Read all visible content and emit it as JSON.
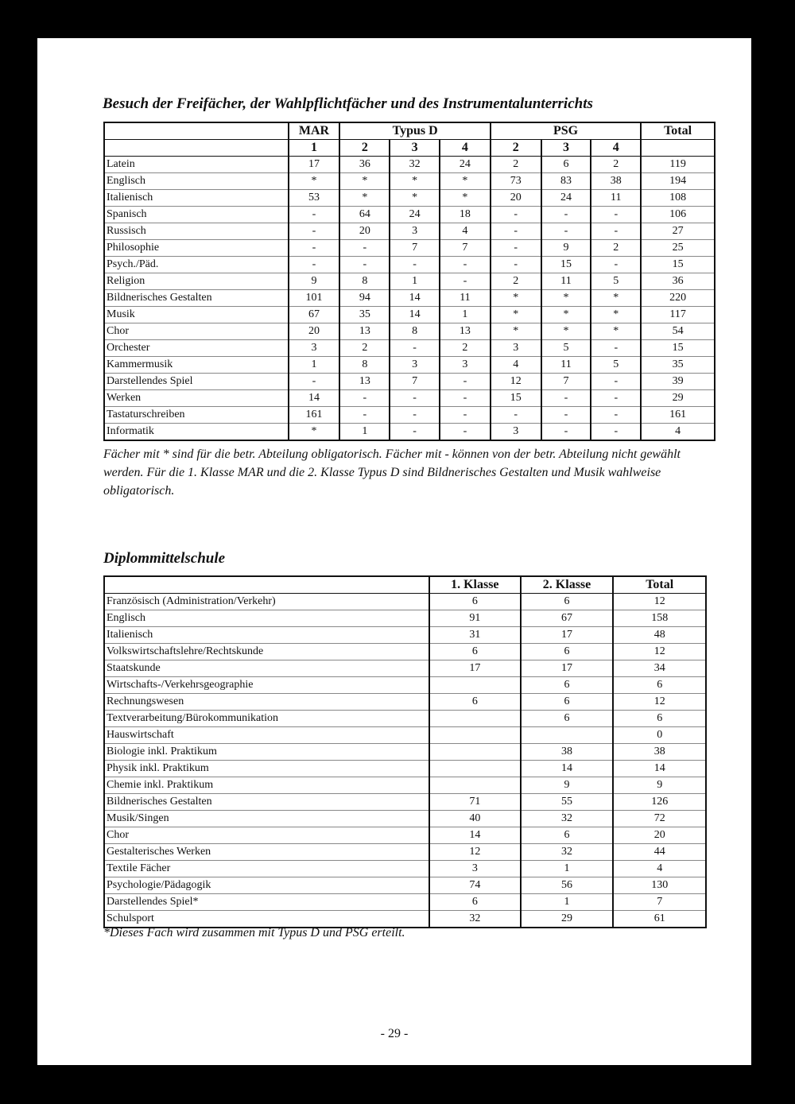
{
  "section1": {
    "title": "Besuch der Freifächer, der Wahlpflichtfächer und des Instrumentalunterrichts",
    "groups": [
      "MAR",
      "Typus D",
      "PSG",
      "Total"
    ],
    "classes": [
      "1",
      "2",
      "3",
      "4",
      "2",
      "3",
      "4"
    ],
    "rows": [
      [
        "Latein",
        "17",
        "36",
        "32",
        "24",
        "2",
        "6",
        "2",
        "119"
      ],
      [
        "Englisch",
        "*",
        "*",
        "*",
        "*",
        "73",
        "83",
        "38",
        "194"
      ],
      [
        "Italienisch",
        "53",
        "*",
        "*",
        "*",
        "20",
        "24",
        "11",
        "108"
      ],
      [
        "Spanisch",
        "-",
        "64",
        "24",
        "18",
        "-",
        "-",
        "-",
        "106"
      ],
      [
        "Russisch",
        "-",
        "20",
        "3",
        "4",
        "-",
        "-",
        "-",
        "27"
      ],
      [
        "Philosophie",
        "-",
        "-",
        "7",
        "7",
        "-",
        "9",
        "2",
        "25"
      ],
      [
        "Psych./Päd.",
        "-",
        "-",
        "-",
        "-",
        "-",
        "15",
        "-",
        "15"
      ],
      [
        "Religion",
        "9",
        "8",
        "1",
        "-",
        "2",
        "11",
        "5",
        "36"
      ],
      [
        "Bildnerisches Gestalten",
        "101",
        "94",
        "14",
        "11",
        "*",
        "*",
        "*",
        "220"
      ],
      [
        "Musik",
        "67",
        "35",
        "14",
        "1",
        "*",
        "*",
        "*",
        "117"
      ],
      [
        "Chor",
        "20",
        "13",
        "8",
        "13",
        "*",
        "*",
        "*",
        "54"
      ],
      [
        "Orchester",
        "3",
        "2",
        "-",
        "2",
        "3",
        "5",
        "-",
        "15"
      ],
      [
        "Kammermusik",
        "1",
        "8",
        "3",
        "3",
        "4",
        "11",
        "5",
        "35"
      ],
      [
        "Darstellendes Spiel",
        "-",
        "13",
        "7",
        "-",
        "12",
        "7",
        "-",
        "39"
      ],
      [
        "Werken",
        "14",
        "-",
        "-",
        "-",
        "15",
        "-",
        "-",
        "29"
      ],
      [
        "Tastaturschreiben",
        "161",
        "-",
        "-",
        "-",
        "-",
        "-",
        "-",
        "161"
      ],
      [
        "Informatik",
        "*",
        "1",
        "-",
        "-",
        "3",
        "-",
        "-",
        "4"
      ]
    ],
    "note": "Fächer mit * sind für die betr. Abteilung obligatorisch. Fächer mit - können von der betr. Abteilung nicht gewählt werden. Für die 1. Klasse MAR und die 2. Klasse Typus D sind Bildnerisches Gestalten und Musik wahlweise obligatorisch."
  },
  "section2": {
    "title": "Diplommittelschule",
    "headers": [
      "",
      "1. Klasse",
      "2. Klasse",
      "Total"
    ],
    "rows": [
      [
        "Französisch (Administration/Verkehr)",
        "6",
        "6",
        "12"
      ],
      [
        "Englisch",
        "91",
        "67",
        "158"
      ],
      [
        "Italienisch",
        "31",
        "17",
        "48"
      ],
      [
        "Volkswirtschaftslehre/Rechtskunde",
        "6",
        "6",
        "12"
      ],
      [
        "Staatskunde",
        "17",
        "17",
        "34"
      ],
      [
        "Wirtschafts-/Verkehrsgeographie",
        "",
        "6",
        "6"
      ],
      [
        "Rechnungswesen",
        "6",
        "6",
        "12"
      ],
      [
        "Textverarbeitung/Bürokommunikation",
        "",
        "6",
        "6"
      ],
      [
        "Hauswirtschaft",
        "",
        "",
        "0"
      ],
      [
        "Biologie inkl. Praktikum",
        "",
        "38",
        "38"
      ],
      [
        "Physik inkl. Praktikum",
        "",
        "14",
        "14"
      ],
      [
        "Chemie inkl. Praktikum",
        "",
        "9",
        "9"
      ],
      [
        "Bildnerisches Gestalten",
        "71",
        "55",
        "126"
      ],
      [
        "Musik/Singen",
        "40",
        "32",
        "72"
      ],
      [
        "Chor",
        "14",
        "6",
        "20"
      ],
      [
        "Gestalterisches Werken",
        "12",
        "32",
        "44"
      ],
      [
        "Textile Fächer",
        "3",
        "1",
        "4"
      ],
      [
        "Psychologie/Pädagogik",
        "74",
        "56",
        "130"
      ],
      [
        "Darstellendes Spiel*",
        "6",
        "1",
        "7"
      ],
      [
        "Schulsport",
        "32",
        "29",
        "61"
      ]
    ],
    "note": "*Dieses Fach wird zusammen mit Typus D und PSG erteilt."
  },
  "page_number": "- 29 -"
}
